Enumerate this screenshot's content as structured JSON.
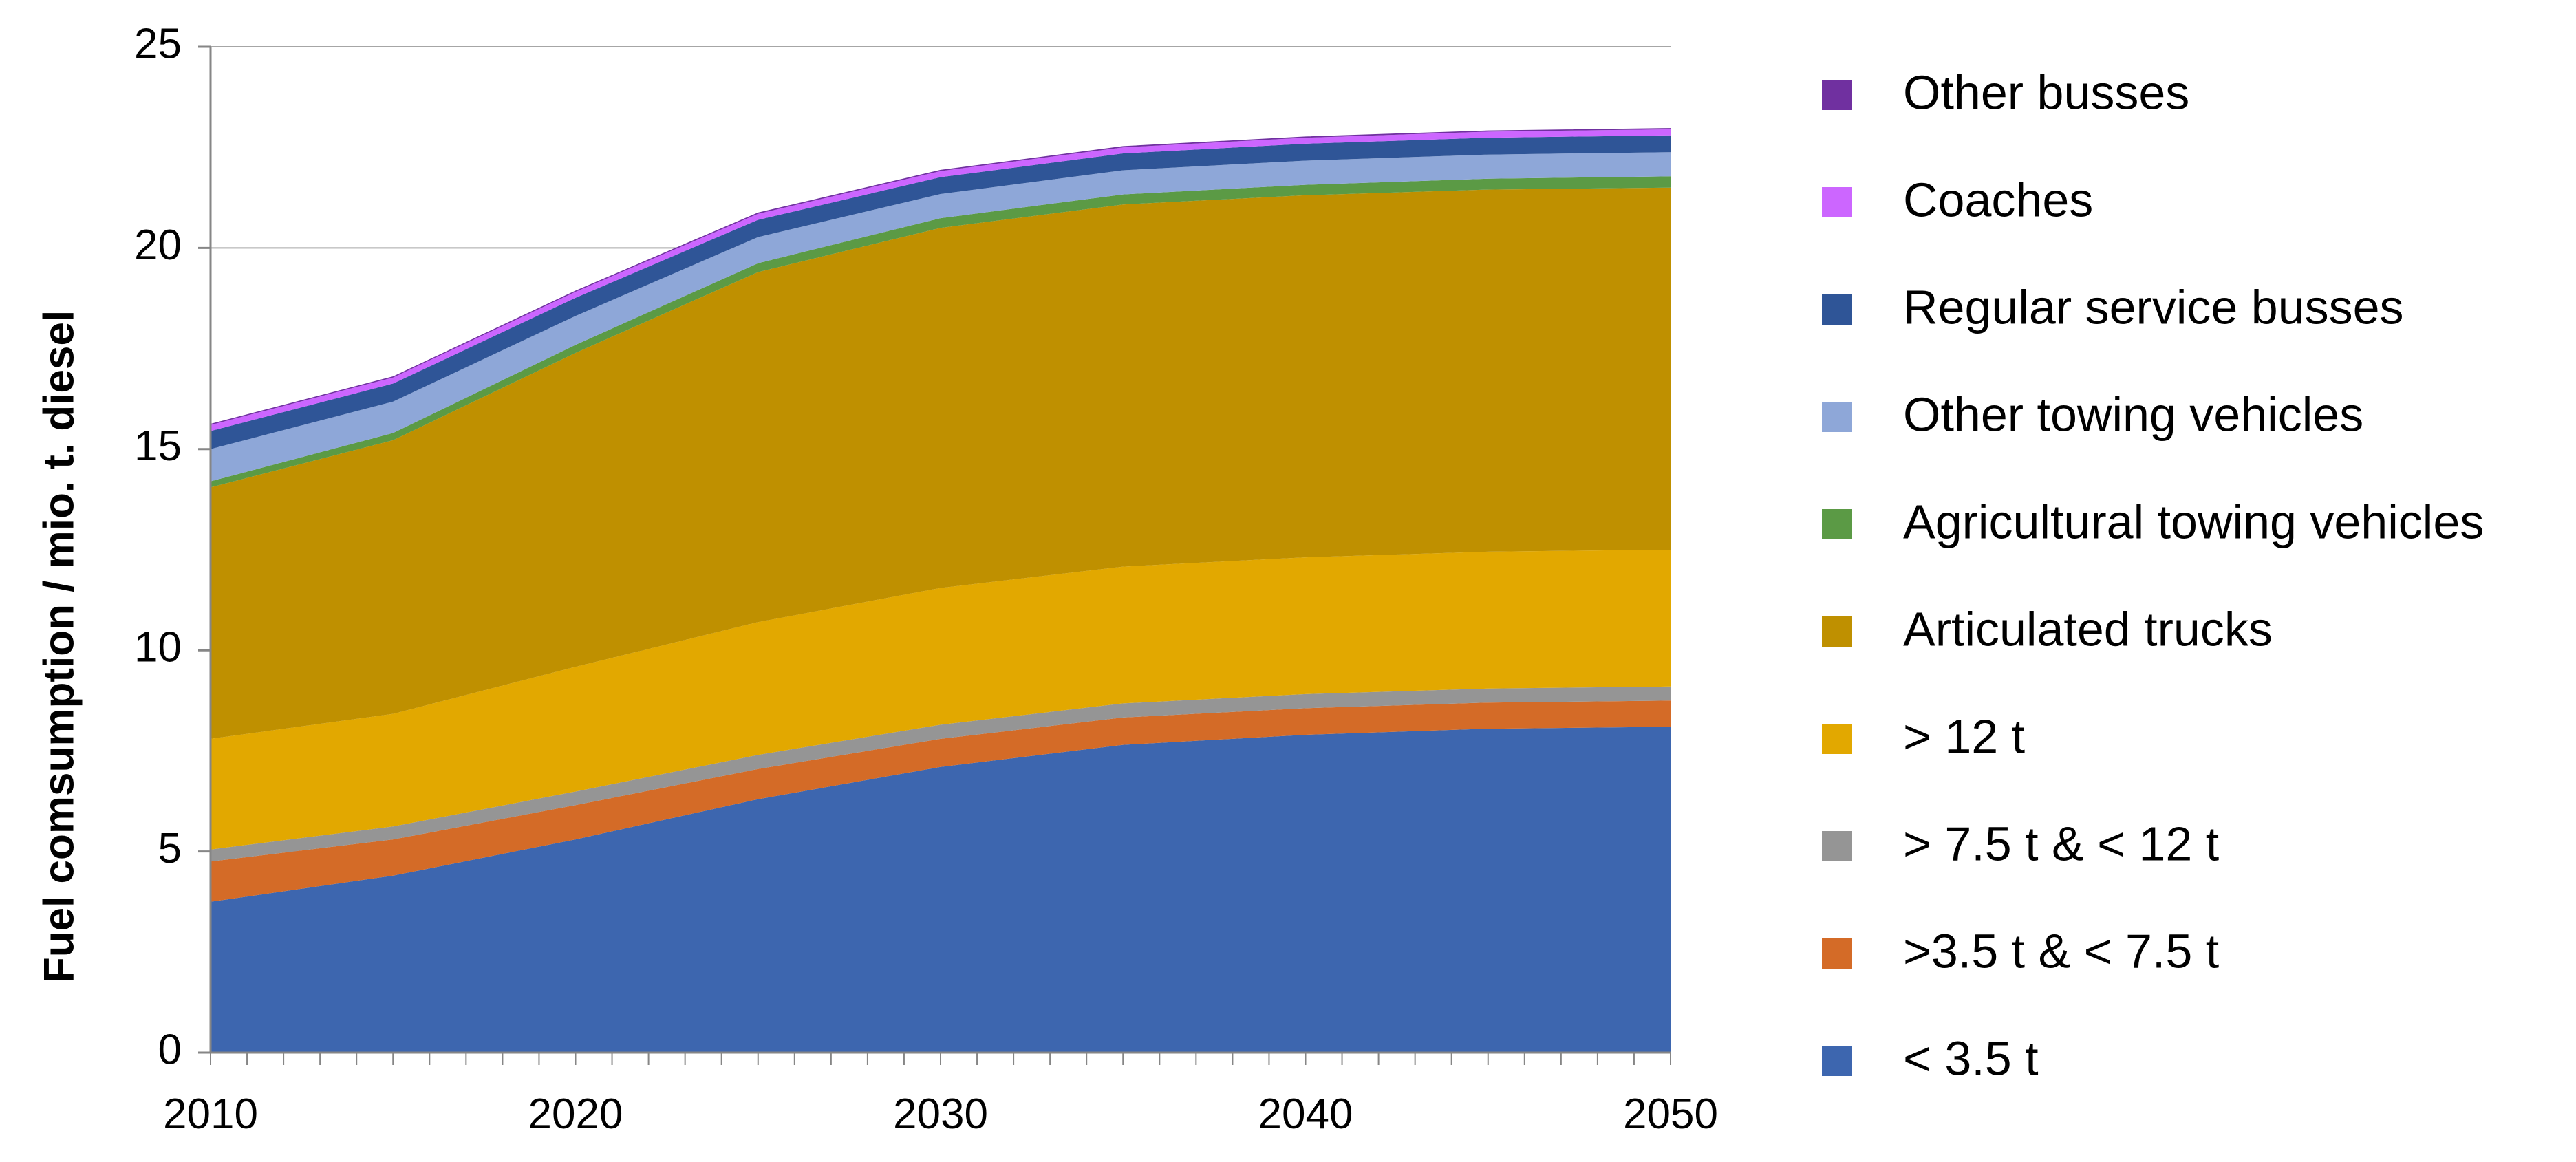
{
  "chart_data": {
    "type": "area",
    "stacked": true,
    "title": "",
    "xlabel": "",
    "ylabel": "Fuel comsumption / mio. t. diesel",
    "xlim": [
      2010,
      2050
    ],
    "ylim": [
      0,
      25
    ],
    "x_ticks": [
      2010,
      2020,
      2030,
      2040,
      2050
    ],
    "y_ticks": [
      0,
      5,
      10,
      15,
      20,
      25
    ],
    "grid": "horizontal",
    "legend_position": "right",
    "x": [
      2010,
      2015,
      2020,
      2025,
      2030,
      2035,
      2040,
      2045,
      2050
    ],
    "series": [
      {
        "name": "< 3.5 t",
        "color": "#3D66AF",
        "values": [
          3.75,
          4.4,
          5.3,
          6.3,
          7.1,
          7.65,
          7.9,
          8.05,
          8.1
        ]
      },
      {
        "name": ">3.5 t & < 7.5 t",
        "color": "#D46B27",
        "values": [
          1.0,
          0.9,
          0.85,
          0.75,
          0.7,
          0.68,
          0.66,
          0.65,
          0.65
        ]
      },
      {
        "name": "> 7.5 t & < 12 t",
        "color": "#959595",
        "values": [
          0.3,
          0.32,
          0.34,
          0.35,
          0.35,
          0.35,
          0.35,
          0.35,
          0.35
        ]
      },
      {
        "name": "> 12 t",
        "color": "#E2A800",
        "values": [
          2.75,
          2.8,
          3.1,
          3.3,
          3.4,
          3.4,
          3.4,
          3.4,
          3.4
        ]
      },
      {
        "name": "Articulated trucks",
        "color": "#BF9000",
        "values": [
          6.25,
          6.8,
          7.8,
          8.7,
          8.95,
          9.0,
          9.0,
          9.0,
          9.0
        ]
      },
      {
        "name": "Agricultural towing vehicles",
        "color": "#5B9A45",
        "values": [
          0.15,
          0.18,
          0.2,
          0.22,
          0.24,
          0.25,
          0.26,
          0.27,
          0.28
        ]
      },
      {
        "name": "Other towing vehicles",
        "color": "#8EA7D8",
        "values": [
          0.8,
          0.78,
          0.72,
          0.65,
          0.6,
          0.6,
          0.6,
          0.6,
          0.6
        ]
      },
      {
        "name": "Regular service busses",
        "color": "#2F5597",
        "values": [
          0.45,
          0.45,
          0.45,
          0.43,
          0.42,
          0.42,
          0.42,
          0.42,
          0.42
        ]
      },
      {
        "name": "Coaches",
        "color": "#CC66FF",
        "values": [
          0.15,
          0.15,
          0.15,
          0.15,
          0.15,
          0.15,
          0.15,
          0.15,
          0.15
        ]
      },
      {
        "name": "Other busses",
        "color": "#7030A0",
        "values": [
          0.03,
          0.03,
          0.03,
          0.03,
          0.03,
          0.03,
          0.03,
          0.03,
          0.03
        ]
      }
    ]
  }
}
